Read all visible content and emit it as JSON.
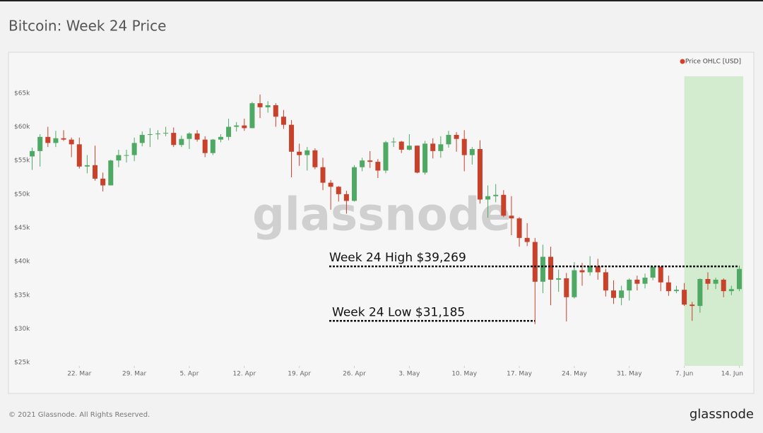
{
  "chart_data": {
    "type": "candlestick",
    "title": "Bitcoin: Week 24 Price",
    "watermark": "glassnode",
    "legend": "top-right",
    "x": [
      "16. Mar",
      "17. Mar",
      "18. Mar",
      "19. Mar",
      "20. Mar",
      "21. Mar",
      "22. Mar",
      "23. Mar",
      "24. Mar",
      "25. Mar",
      "26. Mar",
      "27. Mar",
      "28. Mar",
      "29. Mar",
      "30. Mar",
      "31. Mar",
      "1. Apr",
      "2. Apr",
      "3. Apr",
      "4. Apr",
      "5. Apr",
      "6. Apr",
      "7. Apr",
      "8. Apr",
      "9. Apr",
      "10. Apr",
      "11. Apr",
      "12. Apr",
      "13. Apr",
      "14. Apr",
      "15. Apr",
      "16. Apr",
      "17. Apr",
      "18. Apr",
      "19. Apr",
      "20. Apr",
      "21. Apr",
      "22. Apr",
      "23. Apr",
      "24. Apr",
      "25. Apr",
      "26. Apr",
      "27. Apr",
      "28. Apr",
      "29. Apr",
      "30. Apr",
      "1. May",
      "2. May",
      "3. May",
      "4. May",
      "5. May",
      "6. May",
      "7. May",
      "8. May",
      "9. May",
      "10. May",
      "11. May",
      "12. May",
      "13. May",
      "14. May",
      "15. May",
      "16. May",
      "17. May",
      "18. May",
      "19. May",
      "20. May",
      "21. May",
      "22. May",
      "23. May",
      "24. May",
      "25. May",
      "26. May",
      "27. May",
      "28. May",
      "29. May",
      "30. May",
      "31. May",
      "1. Jun",
      "2. Jun",
      "3. Jun",
      "4. Jun",
      "5. Jun",
      "6. Jun",
      "7. Jun",
      "8. Jun",
      "9. Jun",
      "10. Jun",
      "11. Jun",
      "12. Jun",
      "13. Jun",
      "14. Jun"
    ],
    "series": [
      {
        "name": "Price OHLC [USD]",
        "color": "#d6402b",
        "up_color": "#4fa863",
        "down_color": "#c8412b",
        "open": [
          55.6,
          56.4,
          58.5,
          57.6,
          58.3,
          58.1,
          57.4,
          54.1,
          54.3,
          52.3,
          51.3,
          55.0,
          55.8,
          55.8,
          57.6,
          58.8,
          58.9,
          59.0,
          59.1,
          57.3,
          58.2,
          59.0,
          58.1,
          56.1,
          58.1,
          58.5,
          60.0,
          60.2,
          59.8,
          63.5,
          62.9,
          63.2,
          61.5,
          60.3,
          56.3,
          55.8,
          56.5,
          54.0,
          51.7,
          51.1,
          50.0,
          49.0,
          54.0,
          55.0,
          54.8,
          53.5,
          57.7,
          57.8,
          56.6,
          57.2,
          53.2,
          57.5,
          56.4,
          57.4,
          58.8,
          58.2,
          55.8,
          56.7,
          49.2,
          49.7,
          49.9,
          46.8,
          46.4,
          43.5,
          42.9,
          37.0,
          40.7,
          37.3,
          37.5,
          34.7,
          38.7,
          38.4,
          39.3,
          38.4,
          35.7,
          34.6,
          35.7,
          37.3,
          36.7,
          37.6,
          39.2,
          36.9,
          35.6,
          35.8,
          33.6,
          33.4,
          37.4,
          36.7,
          37.3,
          35.6,
          35.9
        ],
        "high": [
          56.9,
          58.9,
          60.0,
          59.4,
          59.5,
          58.4,
          58.4,
          55.8,
          57.2,
          53.2,
          55.1,
          56.6,
          56.6,
          58.4,
          59.3,
          59.8,
          59.5,
          60.0,
          59.9,
          58.7,
          59.2,
          59.5,
          58.6,
          58.2,
          58.9,
          61.2,
          60.7,
          61.2,
          63.7,
          64.8,
          63.8,
          63.5,
          62.5,
          61.0,
          57.5,
          57.0,
          56.8,
          55.4,
          52.1,
          51.2,
          50.5,
          54.3,
          55.4,
          56.4,
          55.2,
          57.9,
          58.4,
          57.9,
          58.9,
          57.2,
          57.9,
          58.3,
          58.6,
          59.4,
          59.2,
          59.5,
          57.0,
          58.0,
          51.3,
          51.5,
          50.6,
          49.7,
          46.6,
          45.7,
          43.5,
          42.5,
          42.2,
          38.8,
          38.3,
          39.9,
          39.8,
          40.8,
          40.4,
          38.9,
          37.2,
          36.4,
          37.5,
          37.9,
          38.2,
          39.3,
          39.3,
          37.9,
          36.4,
          36.8,
          34.0,
          37.5,
          38.4,
          37.6,
          37.5,
          36.4,
          39.269
        ],
        "low": [
          53.6,
          54.1,
          57.0,
          57.0,
          57.9,
          55.5,
          53.8,
          53.1,
          52.0,
          50.4,
          51.3,
          54.0,
          54.7,
          54.9,
          57.1,
          57.0,
          58.1,
          58.6,
          57.0,
          57.0,
          56.7,
          57.8,
          55.5,
          55.8,
          57.7,
          58.0,
          59.3,
          59.4,
          59.8,
          61.3,
          62.1,
          60.0,
          59.7,
          52.5,
          54.2,
          53.5,
          53.7,
          50.6,
          47.7,
          48.9,
          47.1,
          48.9,
          53.4,
          53.9,
          52.4,
          53.1,
          57.0,
          56.1,
          56.5,
          53.1,
          52.9,
          55.3,
          55.4,
          56.9,
          56.3,
          53.4,
          54.4,
          48.6,
          46.5,
          48.8,
          46.6,
          43.9,
          42.2,
          42.3,
          30.7,
          35.3,
          33.5,
          35.5,
          31.1,
          34.5,
          36.4,
          37.9,
          37.3,
          34.8,
          33.7,
          33.5,
          34.2,
          35.7,
          36.0,
          37.2,
          35.6,
          34.9,
          35.3,
          33.4,
          31.185,
          32.4,
          35.8,
          35.9,
          34.7,
          35.0,
          35.6
        ],
        "close": [
          56.4,
          58.5,
          57.6,
          58.3,
          58.1,
          57.4,
          54.1,
          54.3,
          52.3,
          51.3,
          55.0,
          55.8,
          55.8,
          57.6,
          58.8,
          58.9,
          59.0,
          59.1,
          57.3,
          58.2,
          59.0,
          58.1,
          56.1,
          58.1,
          58.5,
          60.0,
          60.2,
          59.8,
          63.5,
          62.9,
          63.2,
          61.5,
          60.3,
          56.3,
          55.8,
          56.5,
          54.0,
          51.7,
          51.1,
          50.0,
          49.0,
          54.0,
          55.0,
          54.8,
          53.5,
          57.7,
          57.8,
          56.6,
          57.2,
          53.2,
          57.5,
          56.4,
          57.4,
          58.8,
          58.2,
          55.8,
          56.7,
          49.2,
          49.7,
          49.9,
          46.8,
          46.4,
          43.5,
          42.9,
          37.0,
          40.7,
          37.3,
          37.5,
          34.7,
          38.7,
          38.4,
          39.3,
          38.4,
          35.7,
          34.6,
          35.7,
          37.3,
          36.7,
          37.6,
          39.2,
          36.9,
          35.6,
          35.8,
          33.6,
          33.4,
          37.4,
          36.7,
          37.3,
          35.6,
          35.9,
          38.9
        ]
      }
    ],
    "ylim": [
      24.5,
      67.5
    ],
    "yticks": [
      {
        "value": 25,
        "label": "$25k"
      },
      {
        "value": 30,
        "label": "$30k"
      },
      {
        "value": 35,
        "label": "$35k"
      },
      {
        "value": 40,
        "label": "$40k"
      },
      {
        "value": 45,
        "label": "$45k"
      },
      {
        "value": 50,
        "label": "$50k"
      },
      {
        "value": 55,
        "label": "$55k"
      },
      {
        "value": 60,
        "label": "$60k"
      },
      {
        "value": 65,
        "label": "$65k"
      }
    ],
    "xticks": [
      "22. Mar",
      "29. Mar",
      "5. Apr",
      "12. Apr",
      "19. Apr",
      "26. Apr",
      "3. May",
      "10. May",
      "17. May",
      "24. May",
      "31. May",
      "7. Jun",
      "14. Jun"
    ],
    "highlight": [
      "7. Jun",
      "14. Jun"
    ],
    "annotations": [
      {
        "text": "Week 24 High $39,269",
        "value": 39.269
      },
      {
        "text": "Week 24 Low $31,185",
        "value": 31.185
      }
    ],
    "footer": {
      "copyright": "© 2021 Glassnode. All Rights Reserved.",
      "logo": "glassnode"
    }
  }
}
